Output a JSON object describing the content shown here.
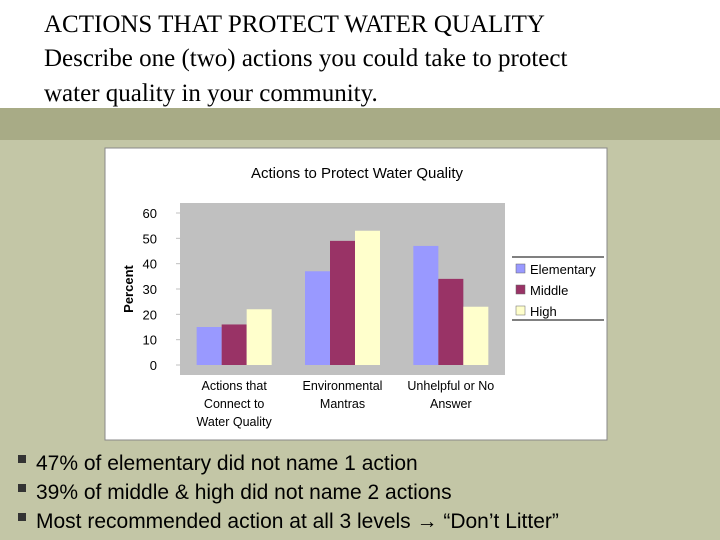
{
  "title": "ACTIONS THAT PROTECT WATER QUALITY",
  "subtitle": "Describe one (two) actions you could take to protect\nwater quality in your community.",
  "chart_data": {
    "type": "bar",
    "title": "Actions to Protect Water Quality",
    "y_label": "Percent",
    "categories": [
      "Actions that\nConnect to\nWater Quality",
      "Environmental\nMantras",
      "Unhelpful or No\nAnswer"
    ],
    "series": [
      {
        "name": "Elementary",
        "color": "#9999ff",
        "values": [
          15,
          37,
          47
        ]
      },
      {
        "name": "Middle",
        "color": "#993366",
        "values": [
          16,
          49,
          34
        ]
      },
      {
        "name": "High",
        "color": "#ffffcc",
        "values": [
          22,
          53,
          23
        ]
      }
    ],
    "ylim": [
      0,
      60
    ],
    "yticks": [
      0,
      10,
      20,
      30,
      40,
      50,
      60
    ],
    "legend": "right"
  },
  "bullets": [
    "47% of elementary did not name 1 action",
    "39% of middle & high did not name 2 actions",
    "Most recommended action at all 3 levels → “Don’t Litter”"
  ]
}
